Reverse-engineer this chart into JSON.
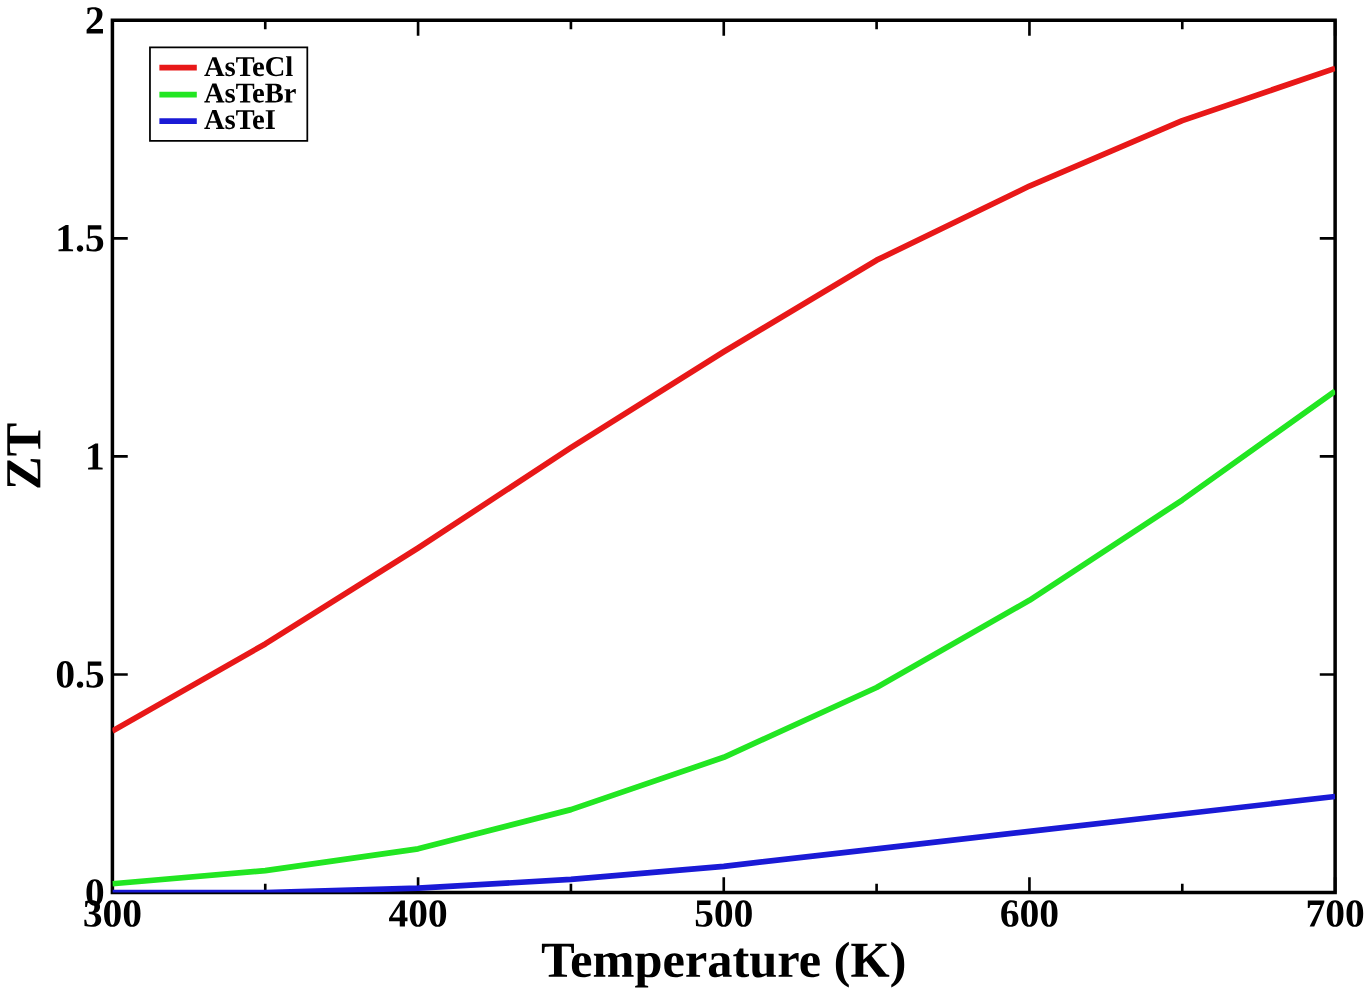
{
  "chart_data": {
    "type": "line",
    "xlabel": "Temperature (K)",
    "ylabel": "ZT",
    "x": [
      300,
      350,
      400,
      450,
      500,
      550,
      600,
      650,
      700
    ],
    "series": [
      {
        "name": "AsTeCl",
        "color": "#e81818",
        "values": [
          0.37,
          0.57,
          0.79,
          1.02,
          1.24,
          1.45,
          1.62,
          1.77,
          1.89
        ]
      },
      {
        "name": "AsTeBr",
        "color": "#22e622",
        "values": [
          0.02,
          0.05,
          0.1,
          0.19,
          0.31,
          0.47,
          0.67,
          0.9,
          1.15
        ]
      },
      {
        "name": "AsTeI",
        "color": "#1a1ad6",
        "values": [
          0.0,
          0.0,
          0.01,
          0.03,
          0.06,
          0.1,
          0.14,
          0.18,
          0.22
        ]
      }
    ],
    "xlim": [
      300,
      700
    ],
    "ylim": [
      0,
      2
    ],
    "xticks": [
      300,
      400,
      500,
      600,
      700
    ],
    "yticks": [
      0,
      0.5,
      1,
      1.5,
      2
    ],
    "legend": "top left",
    "marker": "none",
    "line_style": "solid",
    "grid": false
  }
}
